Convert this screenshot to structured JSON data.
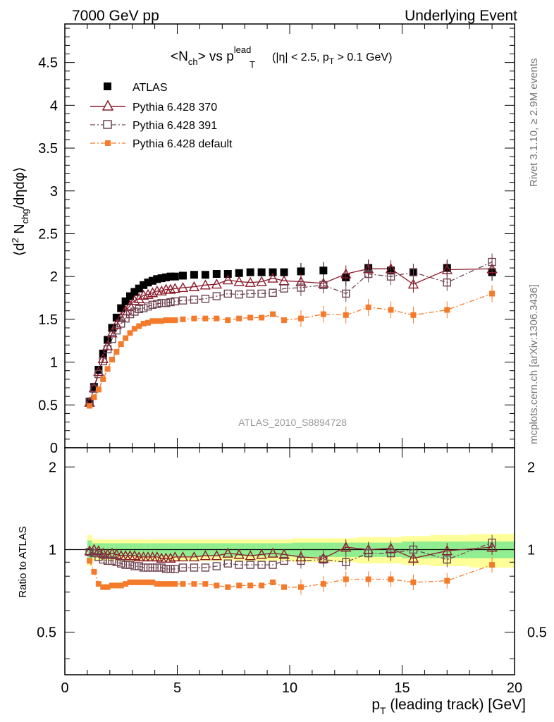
{
  "header": {
    "left": "7000 GeV pp",
    "right": "Underlying Event"
  },
  "side_text": {
    "rivet": "Rivet 3.1.10, ≥ 2.9M events",
    "mcplots": "mcplots.cern.ch [arXiv:1306.3436]"
  },
  "chart_data": [
    {
      "type": "scatter",
      "panel": "main",
      "title_main": "<N",
      "title_sub1": "ch",
      "title_vs": "> vs p",
      "title_sup": "lead",
      "title_sub2": "T",
      "title_cuts_a": "(|η| < 2.5, p",
      "title_cuts_sub": "T",
      "title_cuts_b": " > 0.1 GeV)",
      "ylabel_parts": {
        "open": "⟨d",
        "sup": "2",
        "mid": " N",
        "sub": "chg",
        "tail": "/dηdφ⟩"
      },
      "xlabel_main": "p",
      "xlabel_sub": "T",
      "xlabel_rest": " (leading track) [GeV]",
      "xlim": [
        0,
        20
      ],
      "ylim": [
        0,
        4.95
      ],
      "y_ticks": [
        "0",
        "0.5",
        "1",
        "1.5",
        "2",
        "2.5",
        "3",
        "3.5",
        "4",
        "4.5"
      ],
      "x_ticks": [
        "0",
        "5",
        "10",
        "15",
        "20"
      ],
      "watermark": "ATLAS_2010_S8894728",
      "legend_position": "top-left",
      "series": [
        {
          "name": "ATLAS",
          "color": "#000000",
          "marker": "filled-square",
          "x": [
            1.1,
            1.3,
            1.5,
            1.7,
            1.9,
            2.1,
            2.3,
            2.5,
            2.7,
            2.9,
            3.1,
            3.3,
            3.5,
            3.7,
            3.9,
            4.1,
            4.3,
            4.5,
            4.7,
            4.9,
            5.25,
            5.75,
            6.25,
            6.75,
            7.25,
            7.75,
            8.25,
            8.75,
            9.25,
            9.75,
            10.5,
            11.5,
            12.5,
            13.5,
            14.5,
            15.5,
            17.0,
            19.0
          ],
          "y": [
            0.54,
            0.71,
            0.91,
            1.1,
            1.26,
            1.4,
            1.52,
            1.63,
            1.71,
            1.77,
            1.82,
            1.86,
            1.9,
            1.93,
            1.95,
            1.97,
            1.98,
            1.99,
            2.0,
            2.0,
            2.01,
            2.02,
            2.02,
            2.03,
            2.03,
            2.04,
            2.05,
            2.05,
            2.05,
            2.05,
            2.06,
            2.07,
            1.99,
            2.1,
            2.07,
            2.05,
            2.1,
            2.05
          ]
        },
        {
          "name": "Pythia 6.428 370",
          "color": "#8b1a2b",
          "marker": "open-triangle",
          "line": "solid",
          "x": [
            1.1,
            1.3,
            1.5,
            1.7,
            1.9,
            2.1,
            2.3,
            2.5,
            2.7,
            2.9,
            3.1,
            3.3,
            3.5,
            3.7,
            3.9,
            4.1,
            4.3,
            4.5,
            4.7,
            4.9,
            5.25,
            5.75,
            6.25,
            6.75,
            7.25,
            7.75,
            8.25,
            8.75,
            9.25,
            9.75,
            10.5,
            11.5,
            12.5,
            13.5,
            14.5,
            15.5,
            17.0,
            19.0
          ],
          "y": [
            0.53,
            0.7,
            0.89,
            1.04,
            1.19,
            1.34,
            1.44,
            1.52,
            1.6,
            1.66,
            1.72,
            1.74,
            1.78,
            1.79,
            1.81,
            1.83,
            1.83,
            1.85,
            1.85,
            1.86,
            1.87,
            1.88,
            1.9,
            1.91,
            1.96,
            1.94,
            1.93,
            1.94,
            1.98,
            1.95,
            1.94,
            1.92,
            2.03,
            2.09,
            2.09,
            1.91,
            2.08,
            2.09
          ]
        },
        {
          "name": "Pythia 6.428 391",
          "color": "#6e4452",
          "marker": "open-square",
          "line": "dash-dot",
          "x": [
            1.1,
            1.3,
            1.5,
            1.7,
            1.9,
            2.1,
            2.3,
            2.5,
            2.7,
            2.9,
            3.1,
            3.3,
            3.5,
            3.7,
            3.9,
            4.1,
            4.3,
            4.5,
            4.7,
            4.9,
            5.25,
            5.75,
            6.25,
            6.75,
            7.25,
            7.75,
            8.25,
            8.75,
            9.25,
            9.75,
            10.5,
            11.5,
            12.5,
            13.5,
            14.5,
            15.5,
            17.0,
            19.0
          ],
          "y": [
            0.53,
            0.69,
            0.86,
            1.01,
            1.15,
            1.27,
            1.37,
            1.45,
            1.51,
            1.56,
            1.59,
            1.62,
            1.63,
            1.65,
            1.67,
            1.68,
            1.69,
            1.69,
            1.7,
            1.71,
            1.72,
            1.73,
            1.74,
            1.77,
            1.8,
            1.79,
            1.8,
            1.8,
            1.81,
            1.86,
            1.87,
            1.9,
            1.8,
            2.03,
            2.0,
            2.05,
            1.93,
            2.17
          ]
        },
        {
          "name": "Pythia 6.428 default",
          "color": "#f47b2b",
          "marker": "filled-small-square",
          "line": "dash-dot",
          "x": [
            1.1,
            1.3,
            1.5,
            1.7,
            1.9,
            2.1,
            2.3,
            2.5,
            2.7,
            2.9,
            3.1,
            3.3,
            3.5,
            3.7,
            3.9,
            4.1,
            4.3,
            4.5,
            4.7,
            4.9,
            5.25,
            5.75,
            6.25,
            6.75,
            7.25,
            7.75,
            8.25,
            8.75,
            9.25,
            9.75,
            10.5,
            11.5,
            12.5,
            13.5,
            14.5,
            15.5,
            17.0,
            19.0
          ],
          "y": [
            0.49,
            0.59,
            0.68,
            0.8,
            0.92,
            1.03,
            1.12,
            1.21,
            1.28,
            1.34,
            1.39,
            1.42,
            1.45,
            1.46,
            1.48,
            1.48,
            1.48,
            1.49,
            1.49,
            1.49,
            1.5,
            1.51,
            1.51,
            1.51,
            1.49,
            1.51,
            1.52,
            1.52,
            1.56,
            1.49,
            1.51,
            1.56,
            1.55,
            1.64,
            1.61,
            1.55,
            1.61,
            1.8
          ]
        }
      ]
    },
    {
      "type": "scatter",
      "panel": "ratio",
      "ylabel": "Ratio to ATLAS",
      "xlim": [
        0,
        20
      ],
      "ylim": [
        0.35,
        2.35
      ],
      "log_y": true,
      "y_ticks": [
        "0.5",
        "1",
        "2"
      ],
      "band_colors": {
        "inner": "#90ee90",
        "outer": "#ffff99"
      },
      "band_outer_halfwidth": [
        0.13,
        0.09,
        0.09,
        0.09,
        0.09,
        0.09,
        0.09,
        0.09,
        0.09,
        0.09,
        0.09,
        0.09,
        0.09,
        0.09,
        0.09,
        0.09,
        0.09,
        0.09,
        0.09,
        0.09,
        0.09,
        0.09,
        0.09,
        0.09,
        0.09,
        0.09,
        0.09,
        0.09,
        0.09,
        0.09,
        0.1,
        0.1,
        0.1,
        0.11,
        0.11,
        0.12,
        0.13,
        0.14
      ],
      "band_inner_halfwidth": [
        0.08,
        0.055,
        0.055,
        0.055,
        0.055,
        0.055,
        0.055,
        0.055,
        0.055,
        0.055,
        0.055,
        0.055,
        0.055,
        0.055,
        0.055,
        0.055,
        0.055,
        0.055,
        0.055,
        0.055,
        0.055,
        0.055,
        0.055,
        0.055,
        0.055,
        0.055,
        0.055,
        0.055,
        0.055,
        0.055,
        0.06,
        0.06,
        0.06,
        0.06,
        0.06,
        0.07,
        0.07,
        0.07
      ],
      "series": [
        {
          "name": "Pythia 6.428 370",
          "y": [
            0.99,
            1.0,
            0.99,
            0.97,
            0.96,
            0.97,
            0.96,
            0.95,
            0.95,
            0.95,
            0.95,
            0.94,
            0.94,
            0.94,
            0.94,
            0.94,
            0.93,
            0.93,
            0.93,
            0.94,
            0.94,
            0.94,
            0.95,
            0.95,
            0.97,
            0.96,
            0.95,
            0.96,
            0.97,
            0.96,
            0.94,
            0.93,
            1.02,
            1.0,
            1.01,
            0.93,
            0.99,
            1.02
          ]
        },
        {
          "name": "Pythia 6.428 391",
          "y": [
            0.98,
            0.97,
            0.94,
            0.92,
            0.91,
            0.91,
            0.9,
            0.89,
            0.88,
            0.88,
            0.87,
            0.87,
            0.86,
            0.86,
            0.86,
            0.86,
            0.86,
            0.85,
            0.85,
            0.85,
            0.86,
            0.86,
            0.86,
            0.87,
            0.89,
            0.88,
            0.88,
            0.88,
            0.88,
            0.91,
            0.91,
            0.92,
            0.9,
            0.97,
            0.97,
            1.0,
            0.92,
            1.06
          ]
        },
        {
          "name": "Pythia 6.428 default",
          "y": [
            0.91,
            0.83,
            0.75,
            0.73,
            0.73,
            0.74,
            0.74,
            0.74,
            0.75,
            0.76,
            0.76,
            0.76,
            0.76,
            0.76,
            0.76,
            0.75,
            0.75,
            0.75,
            0.75,
            0.75,
            0.75,
            0.75,
            0.75,
            0.74,
            0.73,
            0.74,
            0.74,
            0.74,
            0.76,
            0.73,
            0.73,
            0.75,
            0.78,
            0.78,
            0.78,
            0.76,
            0.77,
            0.88
          ]
        }
      ]
    }
  ]
}
